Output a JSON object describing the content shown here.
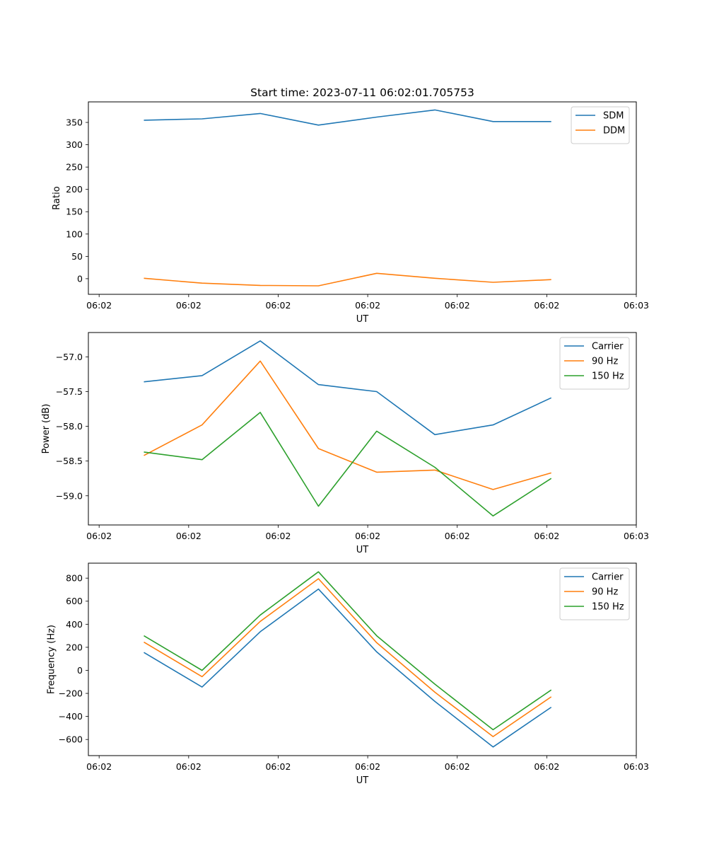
{
  "title": "Start time: 2023-07-11 06:02:01.705753",
  "chart_data": [
    {
      "type": "line",
      "xlabel": "UT",
      "ylabel": "Ratio",
      "x": [
        0.5,
        1.15,
        1.8,
        2.45,
        3.1,
        3.75,
        4.4,
        5.05
      ],
      "xlim": [
        -0.12,
        6.0
      ],
      "x_ticks": [
        0.0,
        1.0,
        2.0,
        3.0,
        4.0,
        5.0,
        6.0
      ],
      "x_tick_labels": [
        "06:02",
        "06:02",
        "06:02",
        "06:02",
        "06:02",
        "06:02",
        "06:03"
      ],
      "ylim": [
        -35,
        396
      ],
      "y_ticks": [
        0,
        50,
        100,
        150,
        200,
        250,
        300,
        350
      ],
      "y_tick_labels": [
        "0",
        "50",
        "100",
        "150",
        "200",
        "250",
        "300",
        "350"
      ],
      "legend_position": "top-right",
      "series": [
        {
          "name": "SDM",
          "color": "#1f77b4",
          "values": [
            355,
            358,
            370,
            344,
            362,
            378,
            352,
            352
          ]
        },
        {
          "name": "DDM",
          "color": "#ff7f0e",
          "values": [
            1,
            -10,
            -15,
            -16,
            12,
            1,
            -8,
            -2
          ]
        }
      ]
    },
    {
      "type": "line",
      "xlabel": "UT",
      "ylabel": "Power (dB)",
      "x": [
        0.5,
        1.15,
        1.8,
        2.45,
        3.1,
        3.75,
        4.4,
        5.05
      ],
      "xlim": [
        -0.12,
        6.0
      ],
      "x_ticks": [
        0.0,
        1.0,
        2.0,
        3.0,
        4.0,
        5.0,
        6.0
      ],
      "x_tick_labels": [
        "06:02",
        "06:02",
        "06:02",
        "06:02",
        "06:02",
        "06:02",
        "06:03"
      ],
      "ylim": [
        -59.42,
        -56.65
      ],
      "y_ticks": [
        -59.0,
        -58.5,
        -58.0,
        -57.5,
        -57.0
      ],
      "y_tick_labels": [
        "−59.0",
        "−58.5",
        "−58.0",
        "−57.5",
        "−57.0"
      ],
      "legend_position": "top-right",
      "series": [
        {
          "name": "Carrier",
          "color": "#1f77b4",
          "values": [
            -57.36,
            -57.27,
            -56.77,
            -57.4,
            -57.5,
            -58.12,
            -57.98,
            -57.59
          ]
        },
        {
          "name": "90 Hz",
          "color": "#ff7f0e",
          "values": [
            -58.42,
            -57.98,
            -57.06,
            -58.32,
            -58.66,
            -58.63,
            -58.91,
            -58.67
          ]
        },
        {
          "name": "150 Hz",
          "color": "#2ca02c",
          "values": [
            -58.37,
            -58.48,
            -57.8,
            -59.15,
            -58.07,
            -58.59,
            -59.29,
            -58.75
          ]
        }
      ]
    },
    {
      "type": "line",
      "xlabel": "UT",
      "ylabel": "Frequency (Hz)",
      "x": [
        0.5,
        1.15,
        1.8,
        2.45,
        3.1,
        3.75,
        4.4,
        5.05
      ],
      "xlim": [
        -0.12,
        6.0
      ],
      "x_ticks": [
        0.0,
        1.0,
        2.0,
        3.0,
        4.0,
        5.0,
        6.0
      ],
      "x_tick_labels": [
        "06:02",
        "06:02",
        "06:02",
        "06:02",
        "06:02",
        "06:02",
        "06:03"
      ],
      "ylim": [
        -740,
        930
      ],
      "y_ticks": [
        -600,
        -400,
        -200,
        0,
        200,
        400,
        600,
        800
      ],
      "y_tick_labels": [
        "−600",
        "−400",
        "−200",
        "0",
        "200",
        "400",
        "600",
        "800"
      ],
      "legend_position": "top-right",
      "series": [
        {
          "name": "Carrier",
          "color": "#1f77b4",
          "values": [
            155,
            -145,
            335,
            705,
            160,
            -270,
            -665,
            -320
          ]
        },
        {
          "name": "90 Hz",
          "color": "#ff7f0e",
          "values": [
            245,
            -55,
            425,
            795,
            240,
            -190,
            -575,
            -230
          ]
        },
        {
          "name": "150 Hz",
          "color": "#2ca02c",
          "values": [
            300,
            0,
            480,
            855,
            300,
            -120,
            -515,
            -170
          ]
        }
      ]
    }
  ]
}
